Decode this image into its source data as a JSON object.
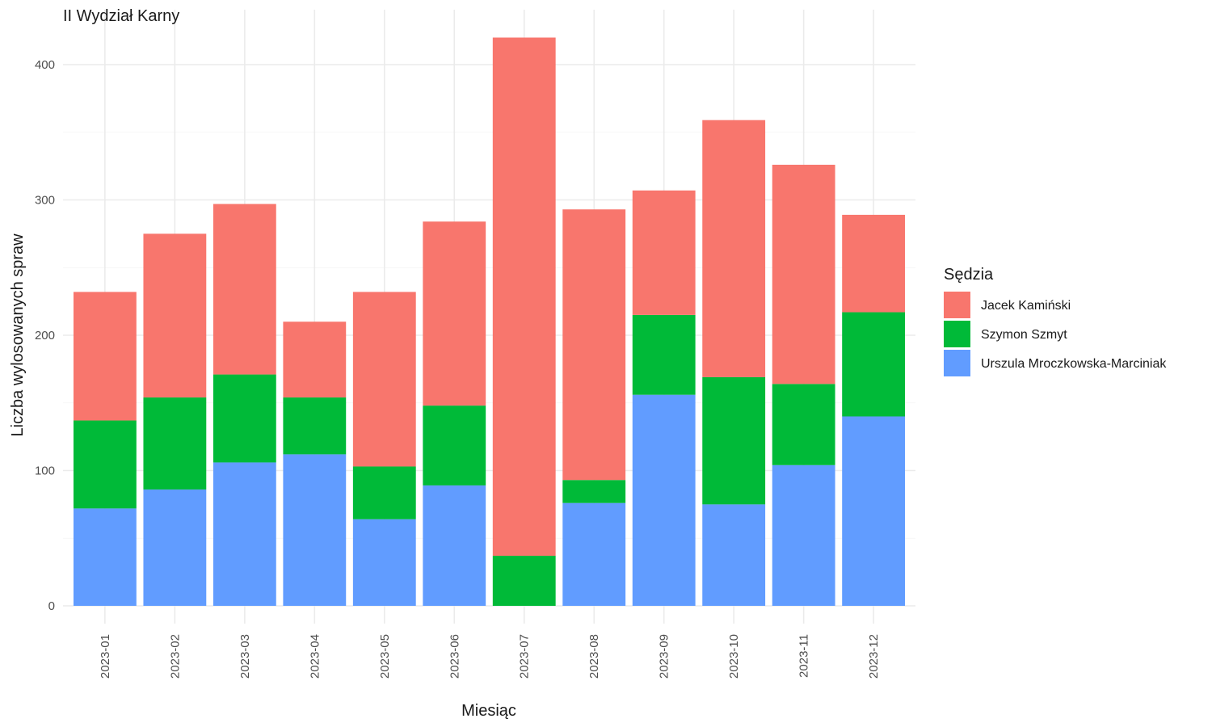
{
  "chart_data": {
    "type": "bar",
    "stacked": true,
    "title": "II Wydział Karny",
    "xlabel": "Miesiąc",
    "ylabel": "Liczba wylosowanych spraw",
    "ylim": [
      0,
      430
    ],
    "yticks": [
      0,
      100,
      200,
      300,
      400
    ],
    "grid": true,
    "legend": {
      "title": "Sędzia",
      "placement": "right"
    },
    "categories": [
      "2023-01",
      "2023-02",
      "2023-03",
      "2023-04",
      "2023-05",
      "2023-06",
      "2023-07",
      "2023-08",
      "2023-09",
      "2023-10",
      "2023-11",
      "2023-12"
    ],
    "series": [
      {
        "name": "Urszula Mroczkowska-Marciniak",
        "color": "#619CFF",
        "values": [
          72,
          86,
          106,
          112,
          64,
          89,
          0,
          76,
          156,
          75,
          104,
          140
        ]
      },
      {
        "name": "Szymon Szmyt",
        "color": "#00BA38",
        "values": [
          65,
          68,
          65,
          42,
          39,
          59,
          37,
          17,
          59,
          94,
          60,
          77
        ]
      },
      {
        "name": "Jacek Kamiński",
        "color": "#F8766D",
        "values": [
          95,
          121,
          126,
          56,
          129,
          136,
          383,
          200,
          92,
          190,
          162,
          72
        ]
      }
    ],
    "legend_order": [
      "Jacek Kamiński",
      "Szymon Szmyt",
      "Urszula Mroczkowska-Marciniak"
    ]
  }
}
